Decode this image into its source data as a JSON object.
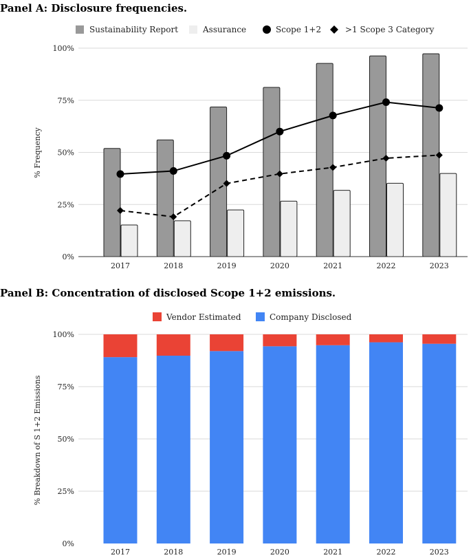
{
  "chart_data": [
    {
      "type": "bar",
      "title": "Panel A: Disclosure frequencies.",
      "ylabel": "% Frequency",
      "xlabel": "",
      "ylim": [
        0,
        100
      ],
      "yticks": [
        "0%",
        "25%",
        "50%",
        "75%",
        "100%"
      ],
      "categories": [
        "2017",
        "2018",
        "2019",
        "2020",
        "2021",
        "2022",
        "2023"
      ],
      "grid": true,
      "legend_position": "top",
      "series": [
        {
          "name": "Sustainability Report",
          "kind": "bar",
          "color": "#999999",
          "values": [
            51.9,
            56.0,
            71.8,
            81.2,
            92.7,
            96.3,
            97.3
          ]
        },
        {
          "name": "Assurance",
          "kind": "bar",
          "color": "#eeeeee",
          "values": [
            15.2,
            17.2,
            22.4,
            26.6,
            31.8,
            35.2,
            39.9
          ]
        },
        {
          "name": "Scope 1+2",
          "kind": "line",
          "marker": "circle",
          "style": "solid",
          "color": "#000000",
          "values": [
            39.6,
            41.1,
            48.4,
            60.0,
            67.7,
            74.1,
            71.3
          ]
        },
        {
          "name": ">1 Scope 3 Category",
          "kind": "line",
          "marker": "diamond",
          "style": "dashed",
          "color": "#000000",
          "values": [
            22.1,
            19.1,
            35.1,
            39.7,
            42.8,
            47.2,
            48.7
          ]
        }
      ]
    },
    {
      "type": "bar",
      "stacked": true,
      "title": "Panel B: Concentration of disclosed Scope 1+2 emissions.",
      "ylabel": "% Breakdown of S 1+2 Emissions",
      "xlabel": "",
      "ylim": [
        0,
        100
      ],
      "yticks": [
        "0%",
        "25%",
        "50%",
        "75%",
        "100%"
      ],
      "categories": [
        "2017",
        "2018",
        "2019",
        "2020",
        "2021",
        "2022",
        "2023"
      ],
      "grid": true,
      "legend_position": "top",
      "series": [
        {
          "name": "Vendor Estimated",
          "color": "#ea4335",
          "values": [
            10.9,
            10.2,
            8.0,
            5.7,
            5.2,
            3.8,
            4.5
          ]
        },
        {
          "name": "Company Disclosed",
          "color": "#4285f4",
          "values": [
            89.1,
            89.8,
            92.0,
            94.3,
            94.8,
            96.2,
            95.5
          ]
        }
      ]
    }
  ]
}
